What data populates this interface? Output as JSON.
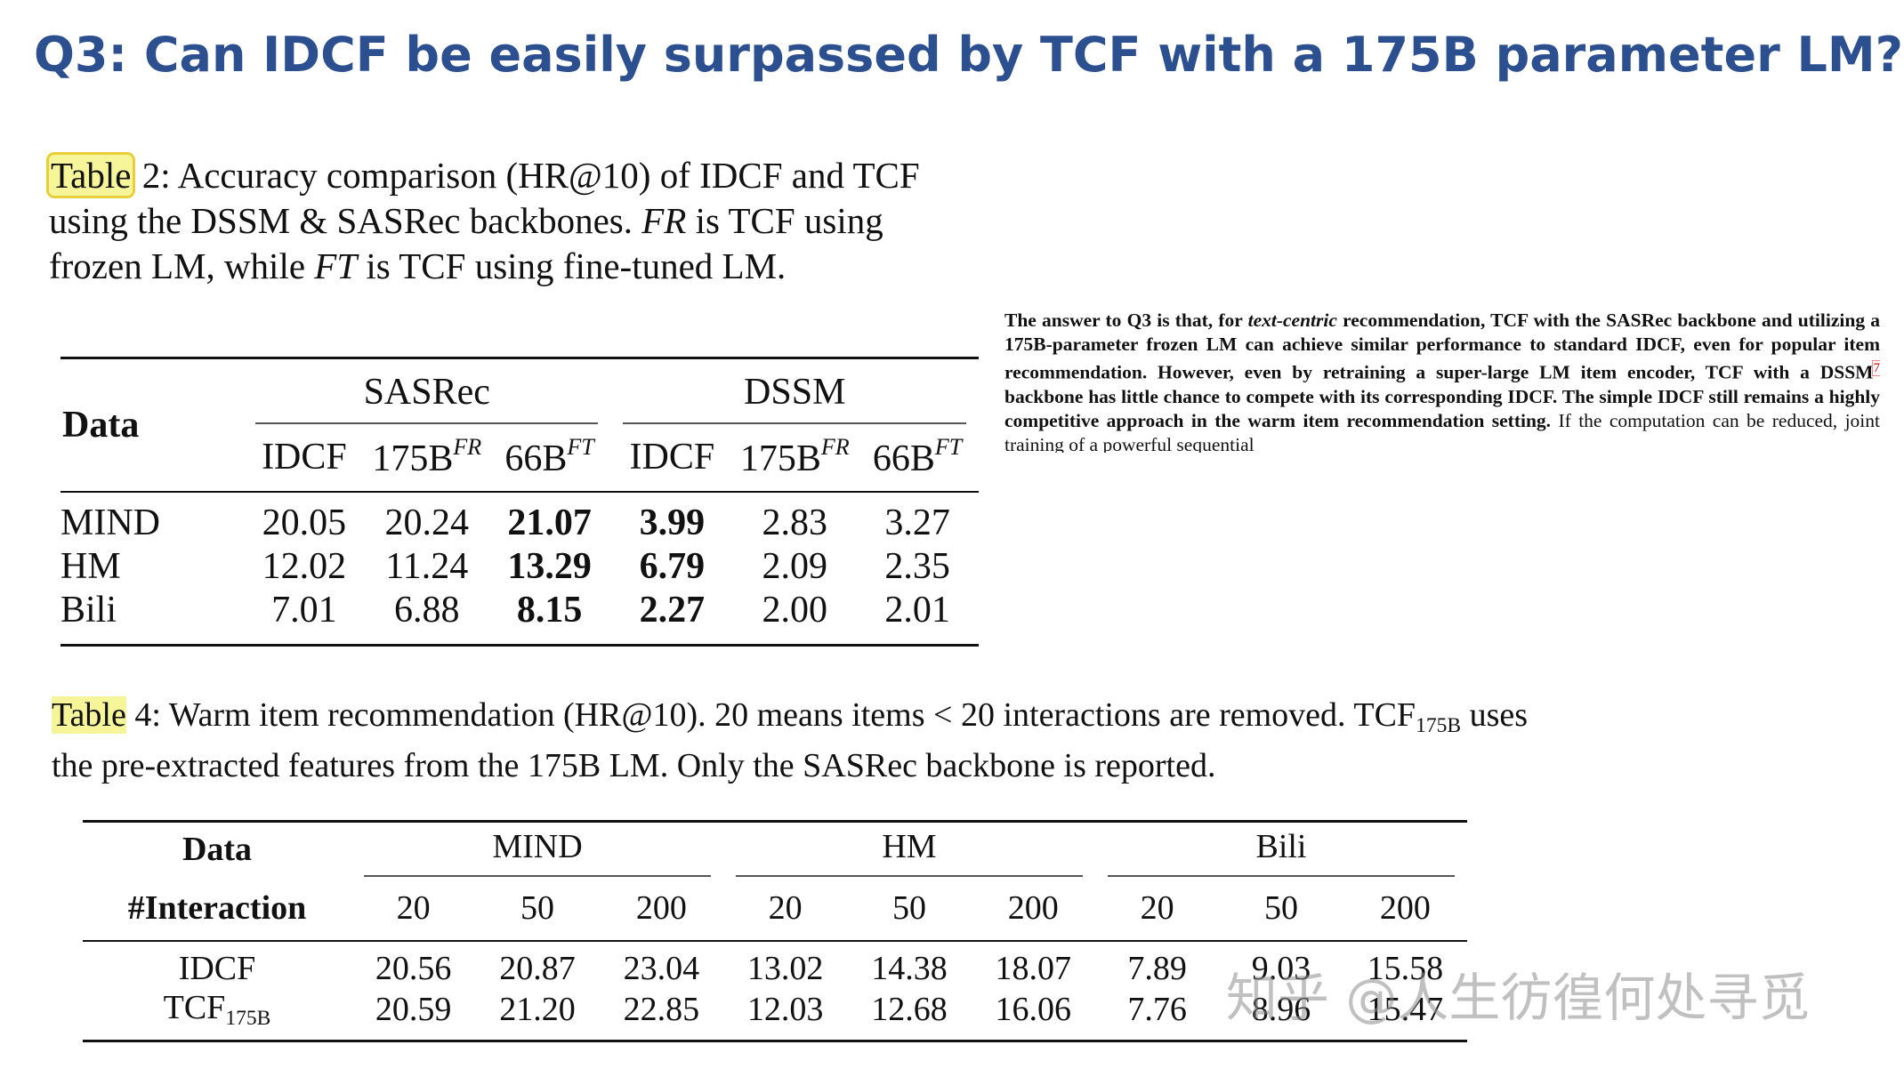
{
  "title": "Q3: Can IDCF be easily surpassed by TCF with a 175B parameter LM?",
  "table2": {
    "caption": [
      {
        "text": "Table",
        "highlight": true
      },
      {
        "text": " 2: Accuracy comparison (HR@10) of IDCF and TCF using the DSSM & SASRec backbones. "
      },
      {
        "text": "FR",
        "italic": true
      },
      {
        "text": " is TCF using frozen LM, while "
      },
      {
        "text": "FT",
        "italic": true
      },
      {
        "text": " is TCF using fine-tuned LM."
      }
    ],
    "row_header": "Data",
    "groups": [
      "SASRec",
      "DSSM"
    ],
    "columns": [
      [
        {
          "text": "IDCF"
        }
      ],
      [
        {
          "text": "175B"
        },
        {
          "text": "FR",
          "sup": true
        }
      ],
      [
        {
          "text": "66B"
        },
        {
          "text": "FT",
          "sup": true
        }
      ],
      [
        {
          "text": "IDCF"
        }
      ],
      [
        {
          "text": "175B"
        },
        {
          "text": "FR",
          "sup": true
        }
      ],
      [
        {
          "text": "66B"
        },
        {
          "text": "FT",
          "sup": true
        }
      ]
    ],
    "bold_columns": [
      2,
      3
    ],
    "rows": [
      {
        "label": [
          {
            "text": "MIND"
          }
        ],
        "values": [
          "20.05",
          "20.24",
          "21.07",
          "3.99",
          "2.83",
          "3.27"
        ]
      },
      {
        "label": [
          {
            "text": "HM"
          }
        ],
        "values": [
          "12.02",
          "11.24",
          "13.29",
          "6.79",
          "2.09",
          "2.35"
        ]
      },
      {
        "label": [
          {
            "text": "Bili"
          }
        ],
        "values": [
          "7.01",
          "6.88",
          "8.15",
          "2.27",
          "2.00",
          "2.01"
        ]
      }
    ]
  },
  "paragraph": [
    {
      "text": "The answer to Q3 is that, for ",
      "bold": true
    },
    {
      "text": "text-centric",
      "bold": true,
      "italic": true
    },
    {
      "text": " recommendation, TCF with the SASRec backbone and utilizing a 175B-parameter frozen LM can achieve similar performance to standard IDCF, even for popular item recommendation. However, even by retraining a super-large LM item encoder, TCF with a DSSM",
      "bold": true
    },
    {
      "text": "7",
      "footnote": true
    },
    {
      "text": " backbone has little chance to compete with its corresponding IDCF. The simple IDCF still remains a highly competitive approach in the warm item recommendation setting.",
      "bold": true
    },
    {
      "text": " If the computation can be reduced, joint training of a powerful sequential"
    }
  ],
  "table4": {
    "caption": [
      {
        "text": "Table",
        "highlight": true
      },
      {
        "text": " 4: Warm item recommendation (HR@10). 20 means items < 20 interactions are removed. TCF"
      },
      {
        "text": "175B",
        "sub": true
      },
      {
        "text": " uses the pre-extracted features from the 175B LM. Only the SASRec backbone is reported."
      }
    ],
    "row_headers": [
      "Data",
      "#Interaction"
    ],
    "groups": [
      "MIND",
      "HM",
      "Bili"
    ],
    "columns": [
      "20",
      "50",
      "200",
      "20",
      "50",
      "200",
      "20",
      "50",
      "200"
    ],
    "rows": [
      {
        "label": [
          {
            "text": "IDCF"
          }
        ],
        "values": [
          "20.56",
          "20.87",
          "23.04",
          "13.02",
          "14.38",
          "18.07",
          "7.89",
          "9.03",
          "15.58"
        ]
      },
      {
        "label": [
          {
            "text": "TCF"
          },
          {
            "text": "175B",
            "sub": true
          }
        ],
        "values": [
          "20.59",
          "21.20",
          "22.85",
          "12.03",
          "12.68",
          "16.06",
          "7.76",
          "8.96",
          "15.47"
        ]
      }
    ]
  },
  "watermark": "知乎 @人生彷徨何处寻觅"
}
